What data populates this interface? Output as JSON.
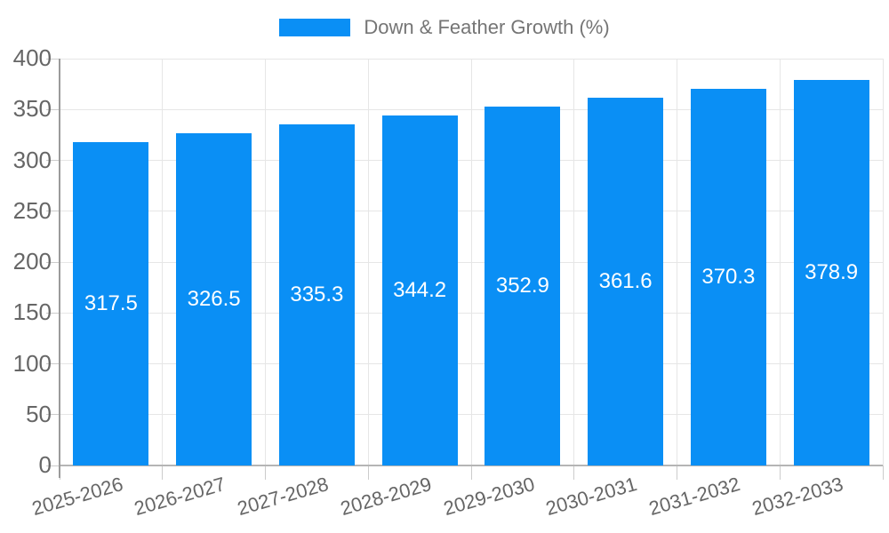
{
  "chart_data": {
    "type": "bar",
    "title": "Down & Feather Growth (%)",
    "legend": {
      "position": "top",
      "label": "Down & Feather Growth (%)"
    },
    "categories": [
      "2025-2026",
      "2026-2027",
      "2027-2028",
      "2028-2029",
      "2029-2030",
      "2030-2031",
      "2031-2032",
      "2032-2033"
    ],
    "values": [
      317.5,
      326.5,
      335.3,
      344.2,
      352.9,
      361.6,
      370.3,
      378.9
    ],
    "xlabel": "",
    "ylabel": "",
    "ylim": [
      0,
      400
    ],
    "yticks": [
      0,
      50,
      100,
      150,
      200,
      250,
      300,
      350,
      400
    ],
    "grid": true,
    "value_labels_position": "inside-center",
    "colors": {
      "bar": "#0a8ff5",
      "value_label": "#ffffff",
      "grid": "#e6e6e6",
      "axis_line": "#9b9b9b",
      "baseline": "#b5b5b5",
      "tick": "#cccccc",
      "tick_label": "#666666",
      "legend_text": "#757575",
      "background": "#ffffff"
    }
  }
}
